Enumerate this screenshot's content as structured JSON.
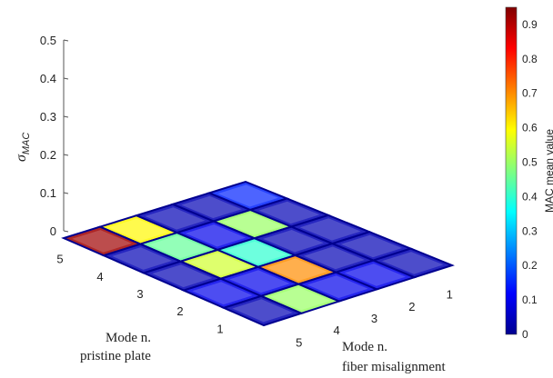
{
  "chart_data": {
    "type": "bar3d",
    "x_axis": {
      "label_line1": "Mode n.",
      "label_line2": "fiber misalignment",
      "ticks": [
        "1",
        "2",
        "3",
        "4",
        "5"
      ]
    },
    "y_axis": {
      "label_line1": "Mode n.",
      "label_line2": "pristine plate",
      "ticks": [
        "1",
        "2",
        "3",
        "4",
        "5"
      ]
    },
    "z_axis": {
      "label_main": "σ",
      "label_sub": "MAC",
      "ticks": [
        "0",
        "0.1",
        "0.2",
        "0.3",
        "0.4",
        "0.5"
      ],
      "range": [
        0,
        0.5
      ]
    },
    "colorbar": {
      "label": "MAC mean value",
      "range": [
        0,
        0.95
      ],
      "ticks": [
        "0",
        "0.1",
        "0.2",
        "0.3",
        "0.4",
        "0.5",
        "0.6",
        "0.7",
        "0.8",
        "0.9"
      ]
    },
    "mac_mean": [
      [
        0.05,
        0.1,
        0.1,
        0.5,
        0.05
      ],
      [
        0.05,
        0.05,
        0.7,
        0.1,
        0.1
      ],
      [
        0.05,
        0.05,
        0.4,
        0.55,
        0.05
      ],
      [
        0.05,
        0.5,
        0.1,
        0.45,
        0.05
      ],
      [
        0.15,
        0.05,
        0.05,
        0.6,
        0.92
      ]
    ],
    "sigma_mac": [
      [
        0.0,
        0.0,
        0.0,
        0.0,
        0.0
      ],
      [
        0.0,
        0.0,
        0.0,
        0.0,
        0.0
      ],
      [
        0.0,
        0.0,
        0.0,
        0.0,
        0.0
      ],
      [
        0.0,
        0.0,
        0.0,
        0.0,
        0.0
      ],
      [
        0.0,
        0.0,
        0.0,
        0.0,
        0.0
      ]
    ]
  }
}
